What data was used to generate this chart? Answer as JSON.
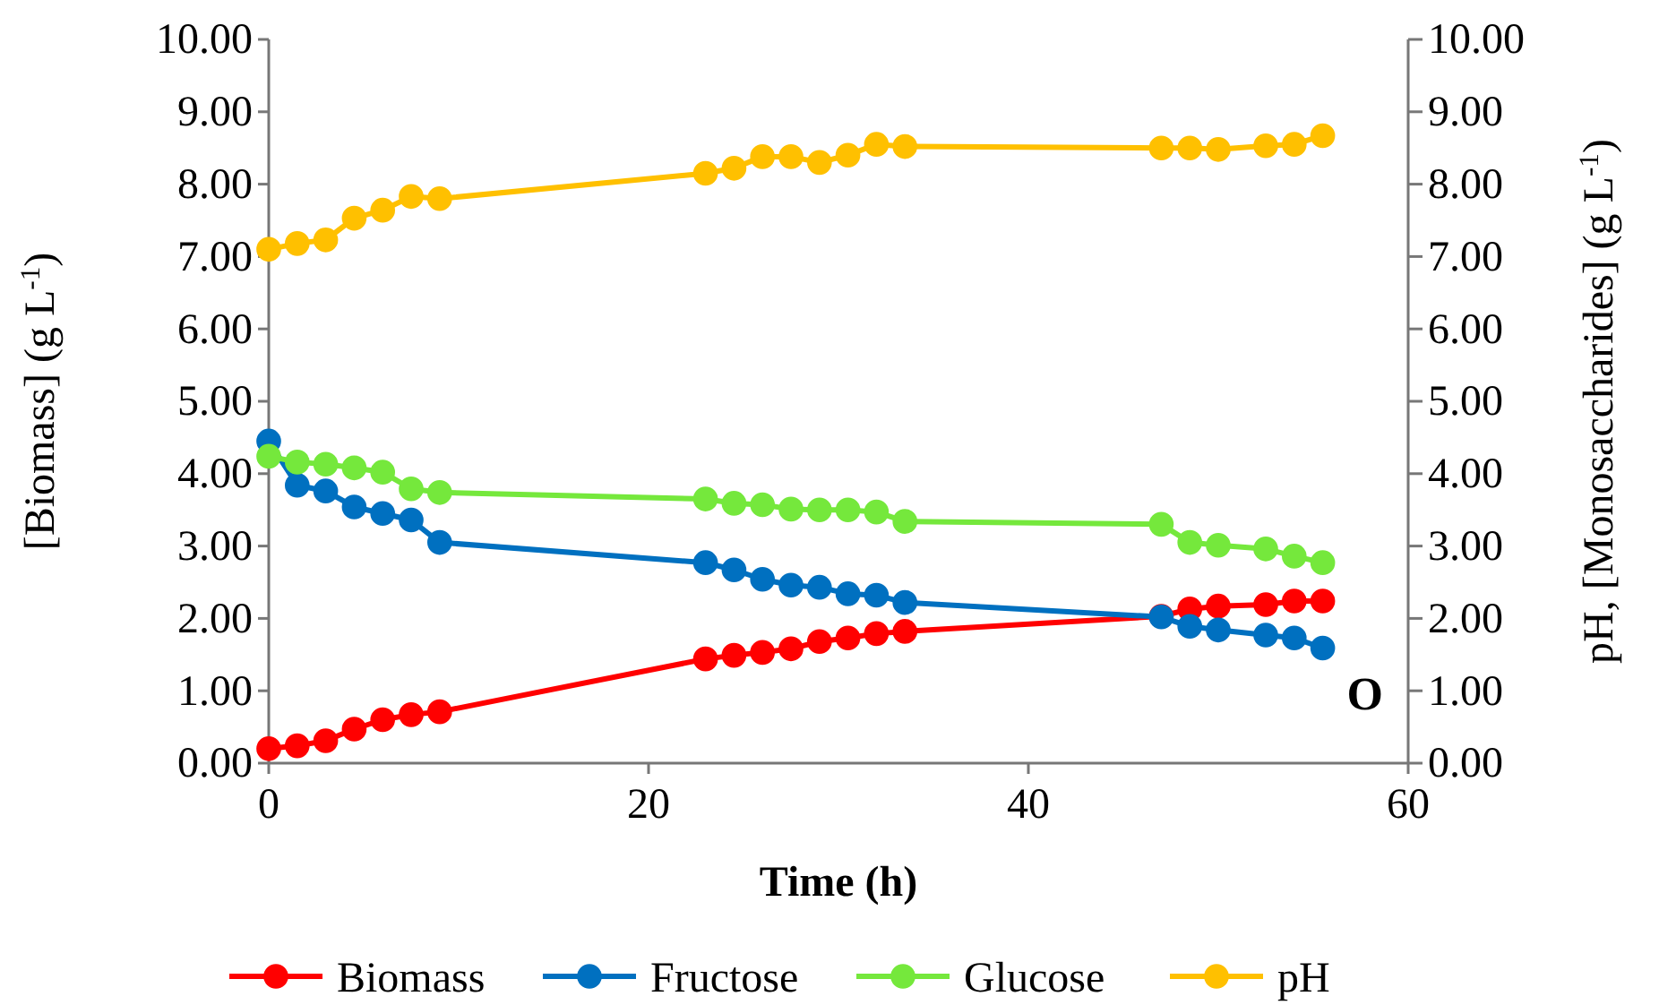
{
  "chart_data": {
    "type": "line",
    "xlabel": "Time (h)",
    "ylabel": "[Biomass] (g L$^{-1}$)",
    "y2label": "pH, [Monosaccharides] (g L$^{-1}$)",
    "x": [
      0,
      1.5,
      3,
      4.5,
      6,
      7.5,
      9,
      23,
      24.5,
      26,
      27.5,
      29,
      30.5,
      32,
      33.5,
      47,
      48.5,
      50,
      52.5,
      54,
      55.5
    ],
    "xlim": [
      0,
      60
    ],
    "xticks": [
      0,
      20,
      40,
      60
    ],
    "ylim": [
      0,
      10
    ],
    "yticks": [
      {
        "value": 0,
        "label": "0.00"
      },
      {
        "value": 1,
        "label": "1.00"
      },
      {
        "value": 2,
        "label": "2.00"
      },
      {
        "value": 3,
        "label": "3.00"
      },
      {
        "value": 4,
        "label": "4.00"
      },
      {
        "value": 5,
        "label": "5.00"
      },
      {
        "value": 6,
        "label": "6.00"
      },
      {
        "value": 7,
        "label": "7.00"
      },
      {
        "value": 8,
        "label": "8.00"
      },
      {
        "value": 9,
        "label": "9.00"
      },
      {
        "value": 10,
        "label": "10.00"
      }
    ],
    "y2lim": [
      0,
      10
    ],
    "y2ticks": [
      {
        "value": 0,
        "label": "0.00"
      },
      {
        "value": 1,
        "label": "1.00"
      },
      {
        "value": 2,
        "label": "2.00"
      },
      {
        "value": 3,
        "label": "3.00"
      },
      {
        "value": 4,
        "label": "4.00"
      },
      {
        "value": 5,
        "label": "5.00"
      },
      {
        "value": 6,
        "label": "6.00"
      },
      {
        "value": 7,
        "label": "7.00"
      },
      {
        "value": 8,
        "label": "8.00"
      },
      {
        "value": 9,
        "label": "9.00"
      },
      {
        "value": 10,
        "label": "10.00"
      }
    ],
    "series": [
      {
        "name": "Biomass",
        "color": "#ff0000",
        "values": [
          0.2,
          0.24,
          0.31,
          0.47,
          0.6,
          0.67,
          0.71,
          1.44,
          1.49,
          1.53,
          1.58,
          1.68,
          1.73,
          1.79,
          1.82,
          2.03,
          2.13,
          2.17,
          2.19,
          2.24,
          2.24
        ]
      },
      {
        "name": "Fructose",
        "color": "#0070c0",
        "values": [
          4.45,
          3.84,
          3.76,
          3.54,
          3.45,
          3.36,
          3.05,
          2.77,
          2.67,
          2.54,
          2.46,
          2.43,
          2.34,
          2.32,
          2.22,
          2.02,
          1.89,
          1.84,
          1.77,
          1.73,
          1.59
        ]
      },
      {
        "name": "Glucose",
        "color": "#75e83c",
        "values": [
          4.24,
          4.16,
          4.13,
          4.08,
          4.02,
          3.79,
          3.74,
          3.65,
          3.59,
          3.57,
          3.51,
          3.5,
          3.5,
          3.47,
          3.34,
          3.3,
          3.05,
          3.01,
          2.96,
          2.86,
          2.77
        ]
      },
      {
        "name": "pH",
        "color": "#ffc000",
        "values": [
          7.1,
          7.18,
          7.23,
          7.53,
          7.64,
          7.83,
          7.8,
          8.15,
          8.22,
          8.38,
          8.38,
          8.3,
          8.4,
          8.55,
          8.52,
          8.5,
          8.5,
          8.48,
          8.53,
          8.55,
          8.67
        ]
      }
    ],
    "annotations": [
      "O"
    ],
    "marker": "circle",
    "legend": "bottom",
    "grid": false
  }
}
